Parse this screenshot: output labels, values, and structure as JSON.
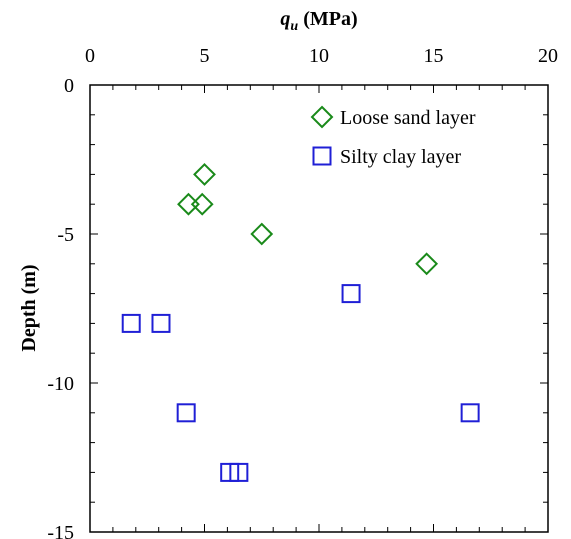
{
  "chart_data": {
    "type": "scatter",
    "xaxis": {
      "label_var": "q",
      "label_sub": "u",
      "label_unit": " (MPa)",
      "position": "top",
      "range": [
        0,
        20
      ],
      "ticks": [
        "0",
        "5",
        "10",
        "15",
        "20"
      ],
      "tick_values": [
        0,
        5,
        10,
        15,
        20
      ]
    },
    "yaxis": {
      "label": "Depth (m)",
      "range": [
        -15,
        0
      ],
      "ticks": [
        "0",
        "-5",
        "-10",
        "-15"
      ],
      "tick_values": [
        0,
        -5,
        -10,
        -15
      ]
    },
    "grid": false,
    "legend_position": "top-right",
    "series": [
      {
        "name": "Loose sand layer",
        "marker": "diamond",
        "color": "#1a8a1a",
        "points": [
          {
            "x": 5.0,
            "y": -3
          },
          {
            "x": 4.3,
            "y": -4
          },
          {
            "x": 4.9,
            "y": -4
          },
          {
            "x": 7.5,
            "y": -5
          },
          {
            "x": 14.7,
            "y": -6
          }
        ]
      },
      {
        "name": "Silty clay layer",
        "marker": "square",
        "color": "#1f1fd6",
        "points": [
          {
            "x": 11.4,
            "y": -7
          },
          {
            "x": 1.8,
            "y": -8
          },
          {
            "x": 3.1,
            "y": -8
          },
          {
            "x": 4.2,
            "y": -11
          },
          {
            "x": 16.6,
            "y": -11
          },
          {
            "x": 6.1,
            "y": -13
          },
          {
            "x": 6.5,
            "y": -13
          }
        ]
      }
    ]
  }
}
